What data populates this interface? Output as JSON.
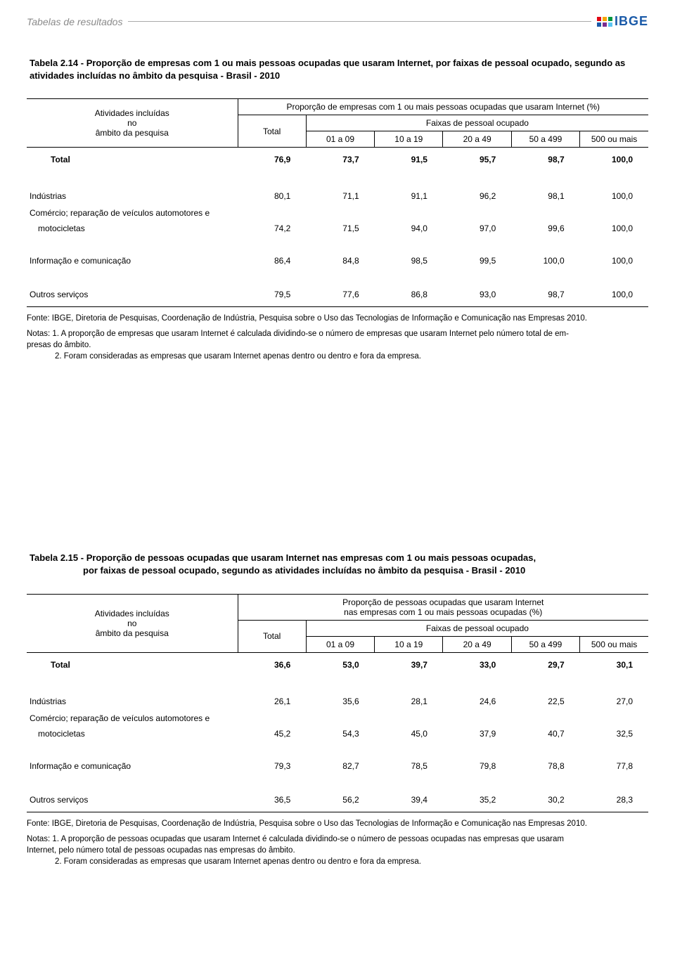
{
  "header": {
    "section_title": "Tabelas de resultados",
    "logo_text": "IBGE",
    "logo_colors": [
      "#e30613",
      "#f7a600",
      "#009640",
      "#1a5aa8",
      "#7b2e8e",
      "#5bc5f2"
    ]
  },
  "table1": {
    "number": "Tabela 2.14",
    "title_rest": " - Proporção de empresas com 1 ou mais pessoas ocupadas que usaram Internet, por faixas de pessoal ocupado, segundo as atividades incluídas no âmbito da pesquisa - Brasil - 2010",
    "row_header_l1": "Atividades incluídas",
    "row_header_l2": "no",
    "row_header_l3": "âmbito da pesquisa",
    "group_header": "Proporção de empresas com 1 ou mais pessoas ocupadas que usaram Internet (%)",
    "subgroup_header": "Faixas de pessoal ocupado",
    "col_total": "Total",
    "cols": [
      "01 a 09",
      "10 a 19",
      "20 a 49",
      "50 a 499",
      "500 ou mais"
    ],
    "rows": [
      {
        "label": "Total",
        "v": [
          "76,9",
          "73,7",
          "91,5",
          "95,7",
          "98,7",
          "100,0"
        ],
        "type": "total"
      },
      {
        "label": "Indústrias",
        "v": [
          "80,1",
          "71,1",
          "91,1",
          "96,2",
          "98,1",
          "100,0"
        ],
        "type": "section"
      },
      {
        "label": "Comércio; reparação de veículos automotores e",
        "v": [
          "",
          "",
          "",
          "",
          "",
          ""
        ],
        "type": "plain"
      },
      {
        "label": "motocicletas",
        "v": [
          "74,2",
          "71,5",
          "94,0",
          "97,0",
          "99,6",
          "100,0"
        ],
        "type": "sub"
      },
      {
        "label": "Informação e comunicação",
        "v": [
          "86,4",
          "84,8",
          "98,5",
          "99,5",
          "100,0",
          "100,0"
        ],
        "type": "section"
      },
      {
        "label": "Outros serviços",
        "v": [
          "79,5",
          "77,6",
          "86,8",
          "93,0",
          "98,7",
          "100,0"
        ],
        "type": "section-last"
      }
    ],
    "fonte": "Fonte: IBGE, Diretoria de Pesquisas, Coordenação de Indústria, Pesquisa sobre o Uso das Tecnologias de Informação e Comunicação nas Empresas 2010.",
    "nota1a": "Notas: 1. A proporção de empresas que usaram Internet é calculada dividindo-se o número de empresas que usaram Internet pelo número total de em-",
    "nota1b": "presas do âmbito.",
    "nota2": "2. Foram consideradas as empresas que usaram Internet apenas dentro ou dentro e fora da empresa."
  },
  "table2": {
    "number": "Tabela 2.15",
    "title_line1": " - Proporção de pessoas ocupadas que usaram Internet nas empresas com 1 ou mais pessoas ocupadas,",
    "title_line2": "por faixas de pessoal ocupado, segundo as atividades incluídas no âmbito da pesquisa - Brasil - 2010",
    "row_header_l1": "Atividades incluídas",
    "row_header_l2": "no",
    "row_header_l3": "âmbito da pesquisa",
    "group_header_l1": "Proporção de pessoas ocupadas que usaram Internet",
    "group_header_l2": "nas empresas com 1 ou mais pessoas ocupadas (%)",
    "subgroup_header": "Faixas de pessoal ocupado",
    "col_total": "Total",
    "cols": [
      "01 a 09",
      "10 a 19",
      "20 a 49",
      "50 a 499",
      "500 ou mais"
    ],
    "rows": [
      {
        "label": "Total",
        "v": [
          "36,6",
          "53,0",
          "39,7",
          "33,0",
          "29,7",
          "30,1"
        ],
        "type": "total"
      },
      {
        "label": "Indústrias",
        "v": [
          "26,1",
          "35,6",
          "28,1",
          "24,6",
          "22,5",
          "27,0"
        ],
        "type": "section"
      },
      {
        "label": "Comércio; reparação de veículos automotores e",
        "v": [
          "",
          "",
          "",
          "",
          "",
          ""
        ],
        "type": "plain"
      },
      {
        "label": "motocicletas",
        "v": [
          "45,2",
          "54,3",
          "45,0",
          "37,9",
          "40,7",
          "32,5"
        ],
        "type": "sub"
      },
      {
        "label": "Informação e comunicação",
        "v": [
          "79,3",
          "82,7",
          "78,5",
          "79,8",
          "78,8",
          "77,8"
        ],
        "type": "section"
      },
      {
        "label": "Outros serviços",
        "v": [
          "36,5",
          "56,2",
          "39,4",
          "35,2",
          "30,2",
          "28,3"
        ],
        "type": "section-last"
      }
    ],
    "fonte": "Fonte: IBGE, Diretoria de Pesquisas, Coordenação de Indústria, Pesquisa sobre o Uso das Tecnologias de Informação e Comunicação nas Empresas 2010.",
    "nota1a": "Notas: 1. A proporção de pessoas ocupadas que usaram Internet é calculada dividindo-se o número de pessoas ocupadas nas empresas que usaram",
    "nota1b": "Internet, pelo número total de pessoas ocupadas nas empresas do âmbito.",
    "nota2": "2. Foram consideradas as empresas que usaram Internet apenas dentro ou dentro e fora da empresa."
  }
}
